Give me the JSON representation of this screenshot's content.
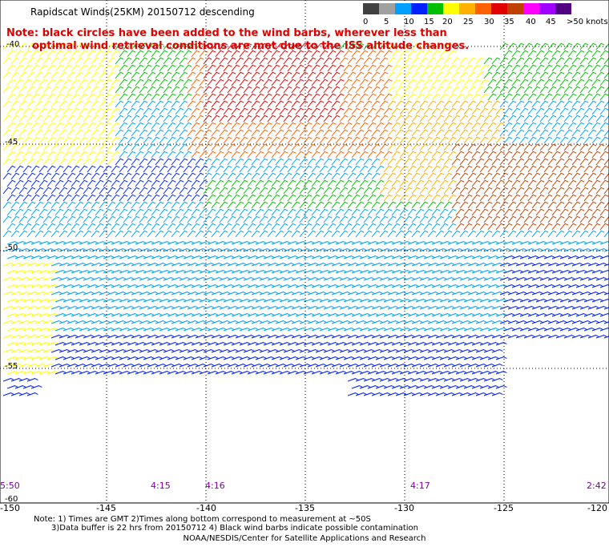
{
  "title": "Rapidscat Winds(25KM) 20150712 descending",
  "legend": {
    "labels": [
      "0",
      "5",
      "10",
      "15",
      "20",
      "25",
      "30",
      "35",
      "40",
      "45",
      ">50 knots"
    ],
    "colors": [
      "#404040",
      "#a0a0a0",
      "#00a0ff",
      "#0020ff",
      "#00c000",
      "#ffff00",
      "#ffb000",
      "#ff6000",
      "#e00000",
      "#c04000",
      "#ff00ff",
      "#a000ff",
      "#500080"
    ]
  },
  "note": {
    "line1": "Note: black circles have been added to the wind barbs, wherever less than",
    "line2": "optimal wind retrieval conditions are met due to the ISS altitude changes."
  },
  "lat_labels": [
    "-40",
    "-45",
    "-50",
    "-55",
    "-60"
  ],
  "lon_labels": [
    "-150",
    "-145",
    "-140",
    "-135",
    "-130",
    "-125",
    "-120"
  ],
  "time_labels": [
    "5:50",
    "4:15",
    "4:16",
    "4:17",
    "2:42"
  ],
  "footer": {
    "line1": "Note: 1) Times are GMT 2)Times along bottom correspond to measurement at ~50S",
    "line2": "3)Data buffer is 22 hrs from 20150712 4) Black wind barbs indicate possible contamination",
    "line3": "NOAA/NESDIS/Center for Satellite Applications and Research"
  }
}
